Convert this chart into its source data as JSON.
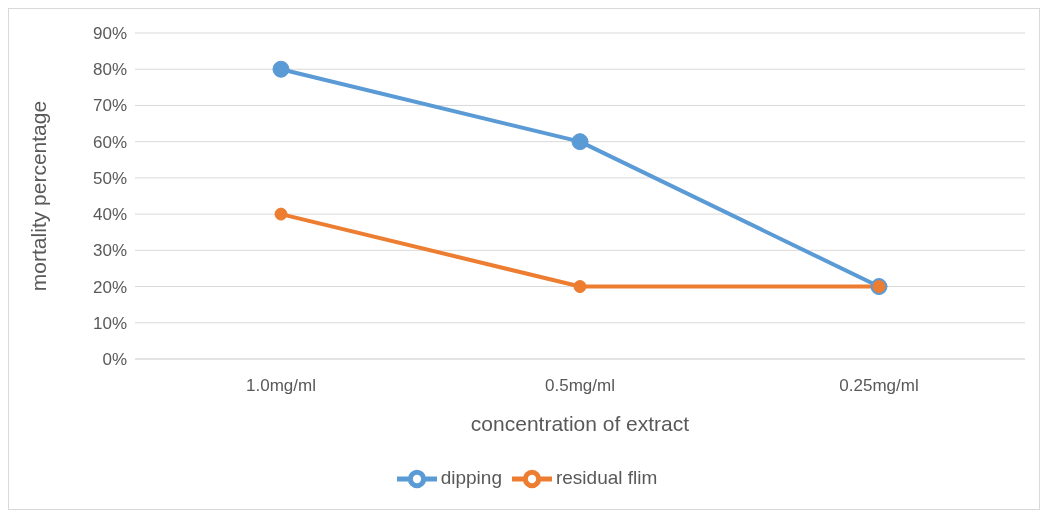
{
  "chart_data": {
    "type": "line",
    "xlabel": "concentration of extract",
    "ylabel": "mortality percentage",
    "categories": [
      "1.0mg/ml",
      "0.5mg/ml",
      "0.25mg/ml"
    ],
    "series": [
      {
        "name": "dipping",
        "color": "#5b9bd5",
        "values": [
          80,
          60,
          20
        ]
      },
      {
        "name": "residual flim",
        "color": "#ed7d31",
        "values": [
          40,
          20,
          20
        ]
      }
    ],
    "ylim": [
      0,
      90
    ],
    "yticks": [
      {
        "value": 0,
        "label": "0%"
      },
      {
        "value": 10,
        "label": "10%"
      },
      {
        "value": 20,
        "label": "20%"
      },
      {
        "value": 30,
        "label": "30%"
      },
      {
        "value": 40,
        "label": "40%"
      },
      {
        "value": 50,
        "label": "50%"
      },
      {
        "value": 60,
        "label": "60%"
      },
      {
        "value": 70,
        "label": "70%"
      },
      {
        "value": 80,
        "label": "80%"
      },
      {
        "value": 90,
        "label": "90%"
      }
    ],
    "grid": "y",
    "legend": "bottom",
    "marker": "circle",
    "line_style": "solid"
  }
}
